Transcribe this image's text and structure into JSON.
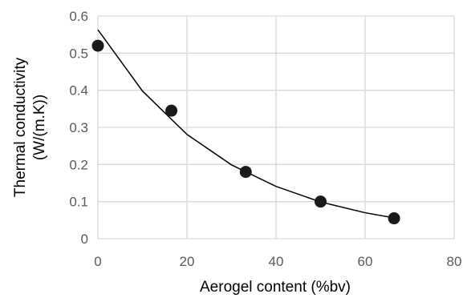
{
  "chart_data": {
    "type": "scatter",
    "title": "",
    "xlabel": "Aerogel content (%bv)",
    "ylabel_lines": [
      "Thermal conductivity",
      "(W/(m.K))"
    ],
    "xlim": [
      0,
      80
    ],
    "ylim": [
      0,
      0.6
    ],
    "x_ticks": [
      "0",
      "20",
      "40",
      "60",
      "80"
    ],
    "y_ticks": [
      "0",
      "0.1",
      "0.2",
      "0.3",
      "0.4",
      "0.5",
      "0.6"
    ],
    "grid": true,
    "legend": "none",
    "series": [
      {
        "kind": "markers",
        "x": [
          0,
          16.5,
          33.2,
          50,
          66.5
        ],
        "y": [
          0.52,
          0.345,
          0.18,
          0.1,
          0.055
        ],
        "color": "#1a1a1a"
      },
      {
        "kind": "exponential trendline",
        "x": [
          0,
          10,
          20,
          30,
          40,
          50,
          60,
          66.5
        ],
        "y": [
          0.563,
          0.398,
          0.281,
          0.199,
          0.141,
          0.099,
          0.07,
          0.056
        ],
        "color": "#000000"
      }
    ]
  }
}
